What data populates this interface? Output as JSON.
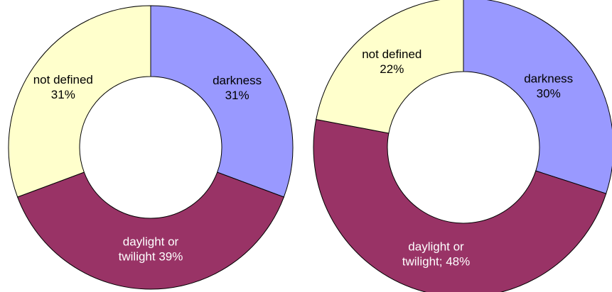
{
  "chart_data": [
    {
      "type": "pie",
      "donut": true,
      "title": "",
      "slices": [
        {
          "name": "darkness",
          "value": 31,
          "color": "#9999ff",
          "label_color": "#000000",
          "label_lines": [
            "darkness",
            "31%"
          ]
        },
        {
          "name": "daylight or twilight",
          "value": 39,
          "color": "#993366",
          "label_color": "#ffffff",
          "label_lines": [
            "daylight or",
            "twilight 39%"
          ]
        },
        {
          "name": "not defined",
          "value": 31,
          "color": "#ffffcc",
          "label_color": "#000000",
          "label_lines": [
            "not defined",
            "31%"
          ]
        }
      ]
    },
    {
      "type": "pie",
      "donut": true,
      "title": "",
      "slices": [
        {
          "name": "darkness",
          "value": 30,
          "color": "#9999ff",
          "label_color": "#000000",
          "label_lines": [
            "darkness",
            "30%"
          ]
        },
        {
          "name": "daylight or twilight",
          "value": 48,
          "color": "#993366",
          "label_color": "#ffffff",
          "label_lines": [
            "daylight or",
            "twilight; 48%"
          ]
        },
        {
          "name": "not defined",
          "value": 22,
          "color": "#ffffcc",
          "label_color": "#000000",
          "label_lines": [
            "not defined",
            "22%"
          ]
        }
      ]
    }
  ]
}
